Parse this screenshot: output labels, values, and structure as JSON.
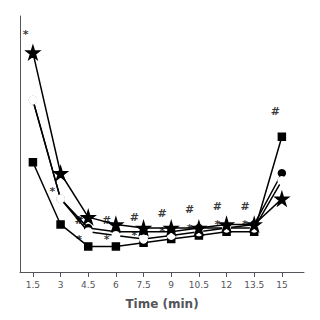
{
  "chart_data": {
    "type": "line",
    "xlabel": "Time (min)",
    "x": [
      1.5,
      3,
      4.5,
      6,
      7.5,
      9,
      10.5,
      12,
      13.5,
      15
    ],
    "series": [
      {
        "values": [
          65,
          48,
          42,
          42,
          43,
          44,
          45,
          46,
          46,
          72
        ],
        "color": "#000000",
        "marker": "square"
      },
      {
        "values": [
          82,
          55,
          47,
          46,
          46,
          46,
          47,
          47,
          48,
          62
        ],
        "color": "#000000",
        "marker": "circle"
      },
      {
        "values": [
          82,
          55,
          46,
          45,
          44,
          45,
          46,
          47,
          47,
          60
        ],
        "color": "#000000",
        "marker": "open_circle"
      },
      {
        "values": [
          95,
          62,
          50,
          48,
          47,
          47,
          47,
          48,
          48,
          55
        ],
        "color": "#000000",
        "marker": "star"
      }
    ],
    "xlim": [
      0.8,
      16.2
    ],
    "xticks": [
      1.5,
      3,
      4.5,
      6,
      7.5,
      9,
      10.5,
      12,
      13.5,
      15
    ],
    "ylim": [
      35,
      105
    ],
    "grid": false,
    "tick_labels": "x",
    "annotations": [
      {
        "text": "*",
        "x": 1.1,
        "y": 100
      },
      {
        "text": "*",
        "x": 2.55,
        "y": 57
      },
      {
        "text": "*",
        "x": 4.0,
        "y": 49
      },
      {
        "text": "#",
        "x": 4.0,
        "y": 49
      },
      {
        "text": "*",
        "x": 4.0,
        "y": 44
      },
      {
        "text": "#",
        "x": 5.5,
        "y": 49
      },
      {
        "text": "*",
        "x": 5.5,
        "y": 44
      },
      {
        "text": "#",
        "x": 7.0,
        "y": 50
      },
      {
        "text": "*",
        "x": 7.0,
        "y": 45
      },
      {
        "text": "#",
        "x": 8.5,
        "y": 51
      },
      {
        "text": "*",
        "x": 8.5,
        "y": 46
      },
      {
        "text": "#",
        "x": 10.0,
        "y": 52
      },
      {
        "text": "*",
        "x": 10.0,
        "y": 47
      },
      {
        "text": "#",
        "x": 11.5,
        "y": 53
      },
      {
        "text": "*",
        "x": 11.5,
        "y": 48
      },
      {
        "text": "#",
        "x": 13.0,
        "y": 53
      },
      {
        "text": "*",
        "x": 13.0,
        "y": 48
      },
      {
        "text": "#",
        "x": 14.65,
        "y": 79
      }
    ]
  }
}
